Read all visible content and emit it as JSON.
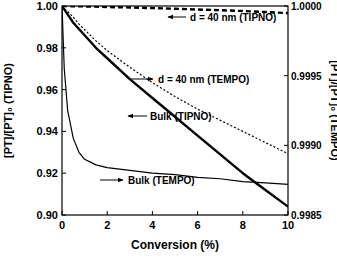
{
  "chart_data": {
    "type": "line",
    "x_label": "Conversion (%)",
    "y_label": "[PT]/[PT]₀ (TIPNO)",
    "y2_label": "[PT]/[PT]₀ (TEMPO)",
    "x": [
      0,
      0.1,
      0.25,
      0.5,
      0.75,
      1,
      1.5,
      2,
      3,
      4,
      5,
      6,
      7,
      8,
      9,
      10
    ],
    "xlim": [
      0,
      10
    ],
    "xticks": [
      0,
      2,
      4,
      6,
      8,
      10
    ],
    "ylim": [
      0.9,
      1.0
    ],
    "yticks": [
      {
        "value": 0.9,
        "label": "0.90"
      },
      {
        "value": 0.92,
        "label": "0.92"
      },
      {
        "value": 0.94,
        "label": "0.94"
      },
      {
        "value": 0.96,
        "label": "0.96"
      },
      {
        "value": 0.98,
        "label": "0.98"
      },
      {
        "value": 1.0,
        "label": "1.00"
      }
    ],
    "y2lim": [
      0.9985,
      1.0
    ],
    "y2ticks": [
      {
        "value": 0.9985,
        "label": "0.9985"
      },
      {
        "value": 0.999,
        "label": "0.9990"
      },
      {
        "value": 0.9995,
        "label": "0.9995"
      },
      {
        "value": 1.0,
        "label": "1.0000"
      }
    ],
    "grid": false,
    "series": [
      {
        "name": "d = 40 nm (TIPNO)",
        "axis": "y",
        "color": "#000000",
        "line_style": "dashed",
        "values": [
          1.0,
          1.0,
          1.0,
          0.9999,
          0.9998,
          0.9998,
          0.9997,
          0.9995,
          0.9993,
          0.999,
          0.9987,
          0.9983,
          0.998,
          0.9976,
          0.9971,
          0.9966
        ]
      },
      {
        "name": "Bulk (TIPNO)",
        "axis": "y",
        "color": "#000000",
        "line_style": "solid",
        "values": [
          1.0,
          0.9984,
          0.996,
          0.992,
          0.989,
          0.986,
          0.98,
          0.975,
          0.965,
          0.956,
          0.947,
          0.938,
          0.929,
          0.92,
          0.912,
          0.904
        ]
      },
      {
        "name": "d = 40 nm (TEMPO)",
        "axis": "y2",
        "color": "#000000",
        "line_style": "dotted",
        "values": [
          1.0,
          0.99998,
          0.99996,
          0.99992,
          0.99987,
          0.99983,
          0.99975,
          0.99968,
          0.99956,
          0.99945,
          0.99935,
          0.99926,
          0.99918,
          0.9991,
          0.99902,
          0.99894
        ]
      },
      {
        "name": "Bulk (TEMPO)",
        "axis": "y2",
        "color": "#000000",
        "line_style": "solid",
        "values": [
          1.0,
          0.99955,
          0.99925,
          0.99905,
          0.99895,
          0.9989,
          0.99886,
          0.99884,
          0.99882,
          0.9988,
          0.99879,
          0.99877,
          0.99876,
          0.99874,
          0.99873,
          0.99872
        ]
      }
    ]
  }
}
